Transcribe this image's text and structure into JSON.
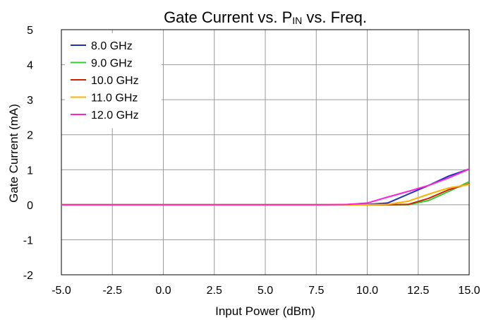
{
  "chart_data": {
    "type": "line",
    "title_main": "Gate Current vs. P",
    "title_sub": "IN",
    "title_end": " vs. Freq.",
    "xlabel": "Input Power (dBm)",
    "ylabel": "Gate Current (mA)",
    "xlim": [
      -5.0,
      15.0
    ],
    "ylim": [
      -2,
      5
    ],
    "xticks": [
      -5.0,
      -2.5,
      0.0,
      2.5,
      5.0,
      7.5,
      10.0,
      12.5,
      15.0
    ],
    "xtick_labels": [
      "-5.0",
      "-2.5",
      "0.0",
      "2.5",
      "5.0",
      "7.5",
      "10.0",
      "12.5",
      "15.0"
    ],
    "yticks": [
      -2,
      -1,
      0,
      1,
      2,
      3,
      4,
      5
    ],
    "ytick_labels": [
      "-2",
      "-1",
      "0",
      "1",
      "2",
      "3",
      "4",
      "5"
    ],
    "grid": true,
    "legend_position": "top-left",
    "series": [
      {
        "name": "8.0 GHz",
        "color": "#1f2fbf",
        "x": [
          -5,
          0,
          5,
          8,
          9,
          10,
          11,
          12,
          13,
          14,
          15
        ],
        "y": [
          0,
          0,
          0,
          0,
          0,
          0.01,
          0.05,
          0.3,
          0.55,
          0.82,
          1.02
        ]
      },
      {
        "name": "9.0 GHz",
        "color": "#33cc33",
        "x": [
          -5,
          0,
          5,
          8,
          9,
          10,
          11,
          12,
          13,
          14,
          15
        ],
        "y": [
          0,
          0,
          0,
          0,
          0,
          0,
          0,
          0,
          0.12,
          0.38,
          0.66
        ]
      },
      {
        "name": "10.0 GHz",
        "color": "#cc2200",
        "x": [
          -5,
          0,
          5,
          8,
          9,
          10,
          11,
          12,
          13,
          14,
          15
        ],
        "y": [
          0,
          0,
          0,
          0,
          0,
          0,
          0,
          0.01,
          0.18,
          0.43,
          0.6
        ]
      },
      {
        "name": "11.0 GHz",
        "color": "#ffb000",
        "x": [
          -5,
          0,
          5,
          8,
          9,
          10,
          11,
          12,
          13,
          14,
          15
        ],
        "y": [
          0,
          0,
          0,
          0,
          0,
          0,
          0.01,
          0.1,
          0.3,
          0.48,
          0.58
        ]
      },
      {
        "name": "12.0 GHz",
        "color": "#ff22dd",
        "x": [
          -5,
          0,
          5,
          8,
          9,
          10,
          11,
          12,
          13,
          14,
          15
        ],
        "y": [
          0,
          0,
          0,
          0,
          0.01,
          0.05,
          0.22,
          0.38,
          0.55,
          0.77,
          1.02
        ]
      }
    ]
  }
}
